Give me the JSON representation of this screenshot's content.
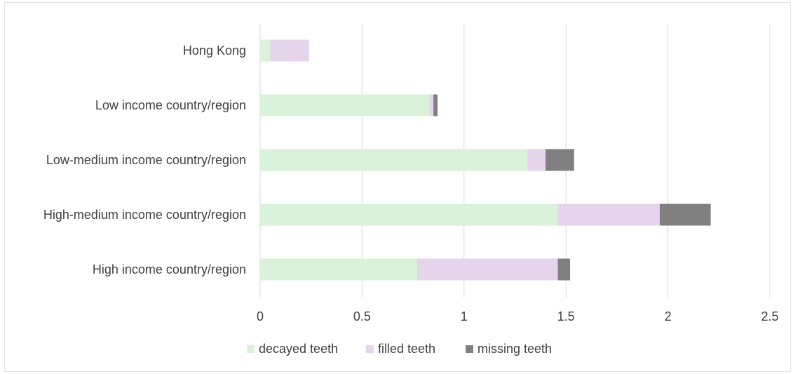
{
  "chart_data": {
    "type": "bar",
    "orientation": "horizontal",
    "stacked": true,
    "categories": [
      "Hong Kong",
      "Low income country/region",
      "Low-medium income country/region",
      "High-medium income country/region",
      "High income country/region"
    ],
    "series": [
      {
        "name": "decayed teeth",
        "color": "#d9f2d9",
        "values": [
          0.05,
          0.83,
          1.31,
          1.46,
          0.77
        ]
      },
      {
        "name": "filled teeth",
        "color": "#e6d3ec",
        "values": [
          0.19,
          0.02,
          0.09,
          0.5,
          0.69
        ]
      },
      {
        "name": "missing teeth",
        "color": "#808080",
        "values": [
          0.0,
          0.02,
          0.14,
          0.25,
          0.06
        ]
      }
    ],
    "xlim": [
      0,
      2.5
    ],
    "xticks": [
      "0",
      "0.5",
      "1",
      "1.5",
      "2",
      "2.5"
    ],
    "xtick_values": [
      0,
      0.5,
      1,
      1.5,
      2,
      2.5
    ],
    "grid": "vertical",
    "legend_position": "bottom",
    "title": "",
    "xlabel": "",
    "ylabel": ""
  }
}
